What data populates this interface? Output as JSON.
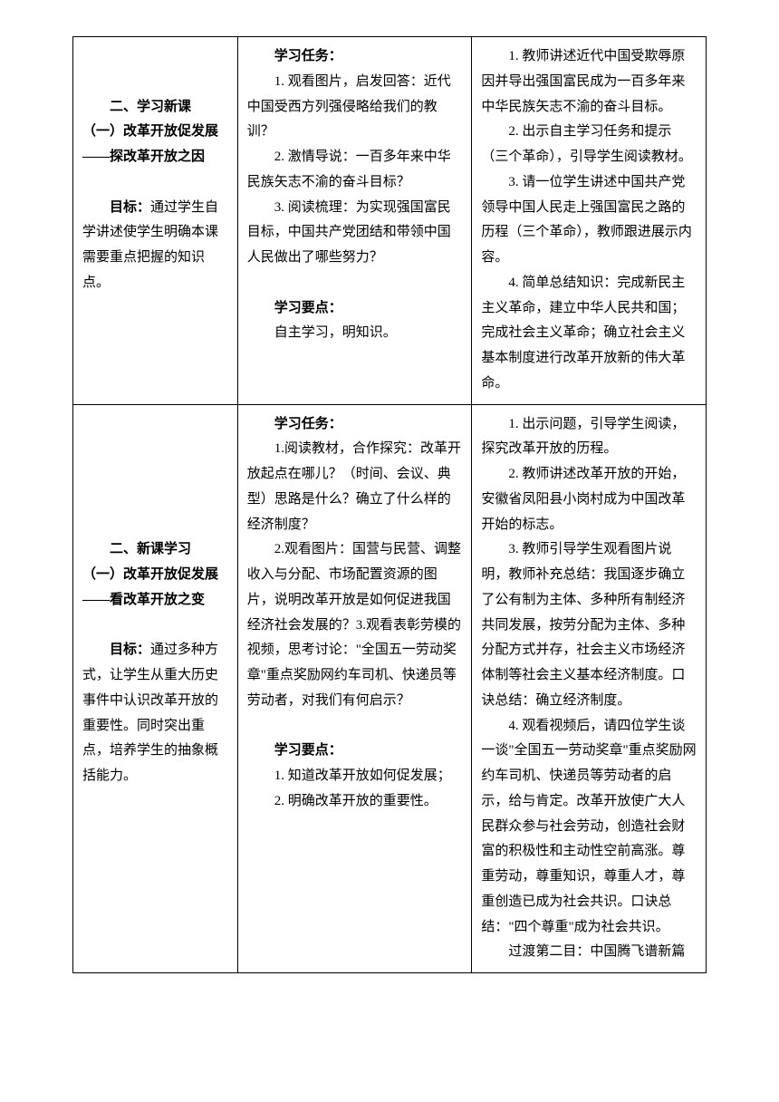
{
  "row1": {
    "left": {
      "title1": "二、学习新课",
      "title2": "（一）改革开放促发展——探改革开放之因",
      "objective_label": "目标：",
      "objective_text": "通过学生自学讲述使学生明确本课需要重点把握的知识点。"
    },
    "middle": {
      "task_header": "学习任务：",
      "task1": "1. 观看图片，启发回答：近代中国受西方列强侵略给我们的教训？",
      "task2": "2. 激情导说：一百多年来中华民族矢志不渝的奋斗目标？",
      "task3": "3. 阅读梳理：为实现强国富民目标，中国共产党团结和带领中国人民做出了哪些努力？",
      "points_header": "学习要点：",
      "point1": "自主学习，明知识。"
    },
    "right": {
      "item1": "1. 教师讲述近代中国受欺辱原因并导出强国富民成为一百多年来中华民族矢志不渝的奋斗目标。",
      "item2": "2. 出示自主学习任务和提示（三个革命），引导学生阅读教材。",
      "item3": "3. 请一位学生讲述中国共产党领导中国人民走上强国富民之路的历程（三个革命），教师跟进展示内容。",
      "item4": "4. 简单总结知识：完成新民主主义革命，建立中华人民共和国；完成社会主义革命；确立社会主义基本制度进行改革开放新的伟大革命。"
    }
  },
  "row2": {
    "left": {
      "title1": "二、新课学习",
      "title2": "（一）改革开放促发展——看改革开放之变",
      "objective_label": "目标：",
      "objective_text": "通过多种方式，让学生从重大历史事件中认识改革开放的重要性。同时突出重点，培养学生的抽象概括能力。"
    },
    "middle": {
      "task_header": "学习任务：",
      "task1": "1.阅读教材，合作探究：改革开放起点在哪儿？（时间、会议、典型）思路是什么？确立了什么样的经济制度？",
      "task2": "2.观看图片：国营与民营、调整收入与分配、市场配置资源的图片，说明改革开放是如何促进我国经济社会发展的？3.观看表彰劳模的视频，思考讨论：\"全国五一劳动奖章\"重点奖励网约车司机、快递员等劳动者，对我们有何启示？",
      "points_header": "学习要点：",
      "point1": "1. 知道改革开放如何促发展；",
      "point2": "2. 明确改革开放的重要性。"
    },
    "right": {
      "item1": "1. 出示问题，引导学生阅读，探究改革开放的历程。",
      "item2": "2. 教师讲述改革开放的开始，安徽省凤阳县小岗村成为中国改革开始的标志。",
      "item3": "3. 教师引导学生观看图片说明，教师补充总结：我国逐步确立了公有制为主体、多种所有制经济共同发展，按劳分配为主体、多种分配方式并存，社会主义市场经济体制等社会主义基本经济制度。口诀总结：确立经济制度。",
      "item4": "4. 观看视频后，请四位学生谈一谈\"全国五一劳动奖章\"重点奖励网约车司机、快递员等劳动者的启示，给与肯定。改革开放使广大人民群众参与社会劳动，创造社会财富的积极性和主动性空前高涨。尊重劳动，尊重知识，尊重人才，尊重创造已成为社会共识。口诀总结：\"四个尊重\"成为社会共识。",
      "transition": "过渡第二目：中国腾飞谱新篇"
    }
  }
}
